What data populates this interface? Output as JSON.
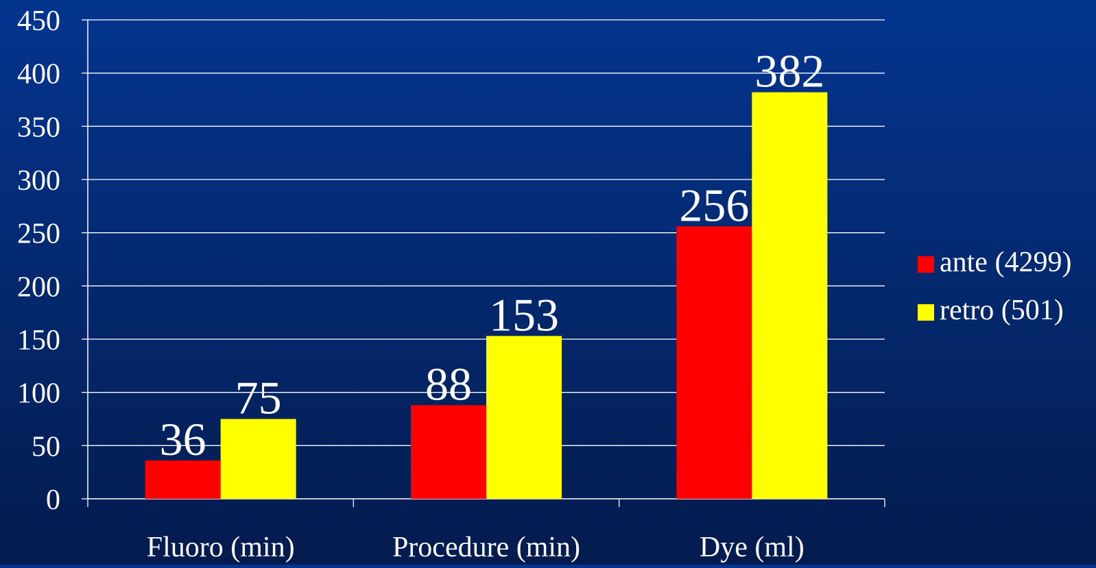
{
  "chart_data": {
    "type": "bar",
    "categories": [
      "Fluoro (min)",
      "Procedure (min)",
      "Dye (ml)"
    ],
    "series": [
      {
        "name": "ante (4299)",
        "color": "#ff0000",
        "values": [
          36,
          88,
          256
        ]
      },
      {
        "name": "retro (501)",
        "color": "#ffff00",
        "values": [
          75,
          153,
          382
        ]
      }
    ],
    "yticks": [
      0,
      50,
      100,
      150,
      200,
      250,
      300,
      350,
      400,
      450
    ],
    "ylim": [
      0,
      450
    ],
    "grid": true,
    "legend_position": "right",
    "title": "",
    "xlabel": "",
    "ylabel": ""
  }
}
